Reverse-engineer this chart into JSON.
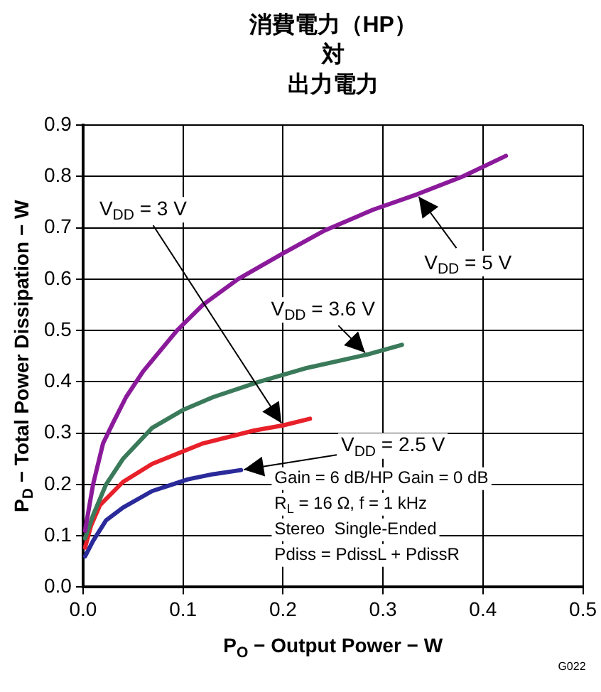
{
  "chart_data": {
    "type": "line",
    "title": "消費電力（HP）対出力電力",
    "xlabel": "P$_{O}$ − Output Power − W",
    "ylabel": "P$_{D}$ − Total Power Dissipation − W",
    "xlim": [
      0,
      0.5
    ],
    "ylim": [
      0,
      0.9
    ],
    "xticks": [
      {
        "value": 0,
        "label": "0.0"
      },
      {
        "value": 0.1,
        "label": "0.1"
      },
      {
        "value": 0.2,
        "label": "0.2"
      },
      {
        "value": 0.3,
        "label": "0.3"
      },
      {
        "value": 0.4,
        "label": "0.4"
      },
      {
        "value": 0.5,
        "label": "0.5"
      }
    ],
    "yticks": [
      {
        "value": 0,
        "label": "0.0"
      },
      {
        "value": 0.1,
        "label": "0.1"
      },
      {
        "value": 0.2,
        "label": "0.2"
      },
      {
        "value": 0.3,
        "label": "0.3"
      },
      {
        "value": 0.4,
        "label": "0.4"
      },
      {
        "value": 0.5,
        "label": "0.5"
      },
      {
        "value": 0.6,
        "label": "0.6"
      },
      {
        "value": 0.7,
        "label": "0.7"
      },
      {
        "value": 0.8,
        "label": "0.8"
      },
      {
        "value": 0.9,
        "label": "0.9"
      }
    ],
    "grid": true,
    "legend": false,
    "marker": "none",
    "line_style": "solid",
    "series": [
      {
        "color": "#8b1a9b",
        "x": [
          0.002,
          0.01,
          0.02,
          0.03,
          0.043,
          0.06,
          0.094,
          0.12,
          0.155,
          0.2,
          0.242,
          0.29,
          0.334,
          0.38,
          0.423
        ],
        "values": [
          0.11,
          0.2,
          0.28,
          0.32,
          0.37,
          0.42,
          0.5,
          0.55,
          0.6,
          0.65,
          0.695,
          0.735,
          0.765,
          0.8,
          0.84
        ]
      },
      {
        "color": "#3a7a5a",
        "x": [
          0.002,
          0.01,
          0.023,
          0.04,
          0.069,
          0.1,
          0.13,
          0.176,
          0.222,
          0.284,
          0.319
        ],
        "values": [
          0.095,
          0.14,
          0.2,
          0.25,
          0.31,
          0.345,
          0.37,
          0.4,
          0.426,
          0.453,
          0.472
        ]
      },
      {
        "color": "#e8202a",
        "x": [
          0.002,
          0.008,
          0.017,
          0.04,
          0.069,
          0.12,
          0.171,
          0.2,
          0.227
        ],
        "values": [
          0.077,
          0.12,
          0.16,
          0.205,
          0.24,
          0.28,
          0.305,
          0.315,
          0.328
        ]
      },
      {
        "color": "#2a2a9a",
        "x": [
          0.002,
          0.01,
          0.023,
          0.04,
          0.069,
          0.105,
          0.13,
          0.158
        ],
        "values": [
          0.06,
          0.09,
          0.13,
          0.155,
          0.187,
          0.21,
          0.22,
          0.228
        ]
      }
    ],
    "annotations": [
      {
        "text": "V$_{DD}$ = 5 V",
        "x": 0.334,
        "y": 0.765
      },
      {
        "text": "V$_{DD}$ = 3.6 V",
        "x": 0.284,
        "y": 0.453
      },
      "V$_{DD}$ = 3 V",
      {
        "text": "V$_{DD}$ = 2.5 V",
        "x": 0.158,
        "y": 0.228
      },
      "Gain = 6 dB/HP Gain = 0 dB",
      "R$_{L}$ = 16 Ω, f = 1 kHz",
      "Stereo  Single-Ended",
      "Pdiss = PdissL + PdissR",
      "G022"
    ]
  }
}
